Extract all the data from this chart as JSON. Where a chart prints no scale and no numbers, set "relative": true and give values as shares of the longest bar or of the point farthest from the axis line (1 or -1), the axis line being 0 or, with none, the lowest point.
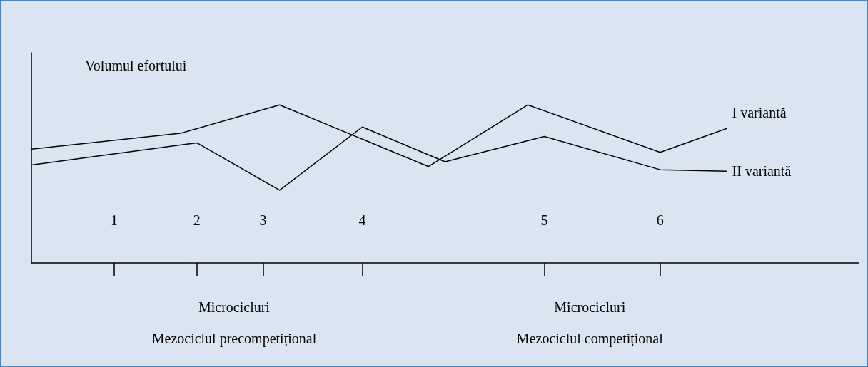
{
  "chart_data": {
    "type": "line",
    "relative": true,
    "ylabel": "Volumul efortului",
    "categories": [
      null,
      null,
      null,
      null,
      null,
      "1",
      null,
      null,
      null,
      null,
      "2",
      null,
      null,
      null,
      "3",
      null,
      null,
      null,
      null,
      null,
      "4",
      null,
      null,
      null,
      null,
      null,
      null,
      null,
      null,
      null,
      null,
      "5",
      null,
      null,
      null,
      null,
      null,
      null,
      "6",
      null,
      null,
      null,
      null,
      null,
      null,
      null,
      null,
      null,
      null,
      null,
      null
    ],
    "series": [
      {
        "name": "I variantă",
        "color": "#000000",
        "values": [
          0.72,
          null,
          null,
          null,
          null,
          null,
          null,
          null,
          null,
          0.82,
          null,
          null,
          null,
          null,
          null,
          1.0,
          null,
          null,
          null,
          null,
          null,
          null,
          null,
          null,
          0.61,
          null,
          null,
          null,
          null,
          null,
          1.0,
          null,
          null,
          null,
          null,
          null,
          null,
          null,
          0.7,
          null,
          null,
          null,
          0.85,
          null,
          null,
          null,
          null,
          null,
          null,
          null,
          null
        ]
      },
      {
        "name": "II variantă",
        "color": "#000000",
        "values": [
          0.62,
          null,
          null,
          null,
          null,
          null,
          null,
          null,
          null,
          null,
          0.76,
          null,
          null,
          null,
          null,
          0.46,
          null,
          null,
          null,
          null,
          0.86,
          null,
          null,
          null,
          null,
          0.64,
          null,
          null,
          null,
          null,
          null,
          0.8,
          null,
          null,
          null,
          null,
          null,
          null,
          0.59,
          null,
          null,
          null,
          0.58,
          null,
          null,
          null,
          null,
          null,
          null,
          null,
          null
        ]
      }
    ],
    "annotations": [
      "Microcicluri",
      "Mezociclul precompetițional",
      "Microcicluri",
      "Mezociclul competițional"
    ],
    "grid": false,
    "legend": false,
    "marker": "none",
    "line_style": "solid"
  }
}
